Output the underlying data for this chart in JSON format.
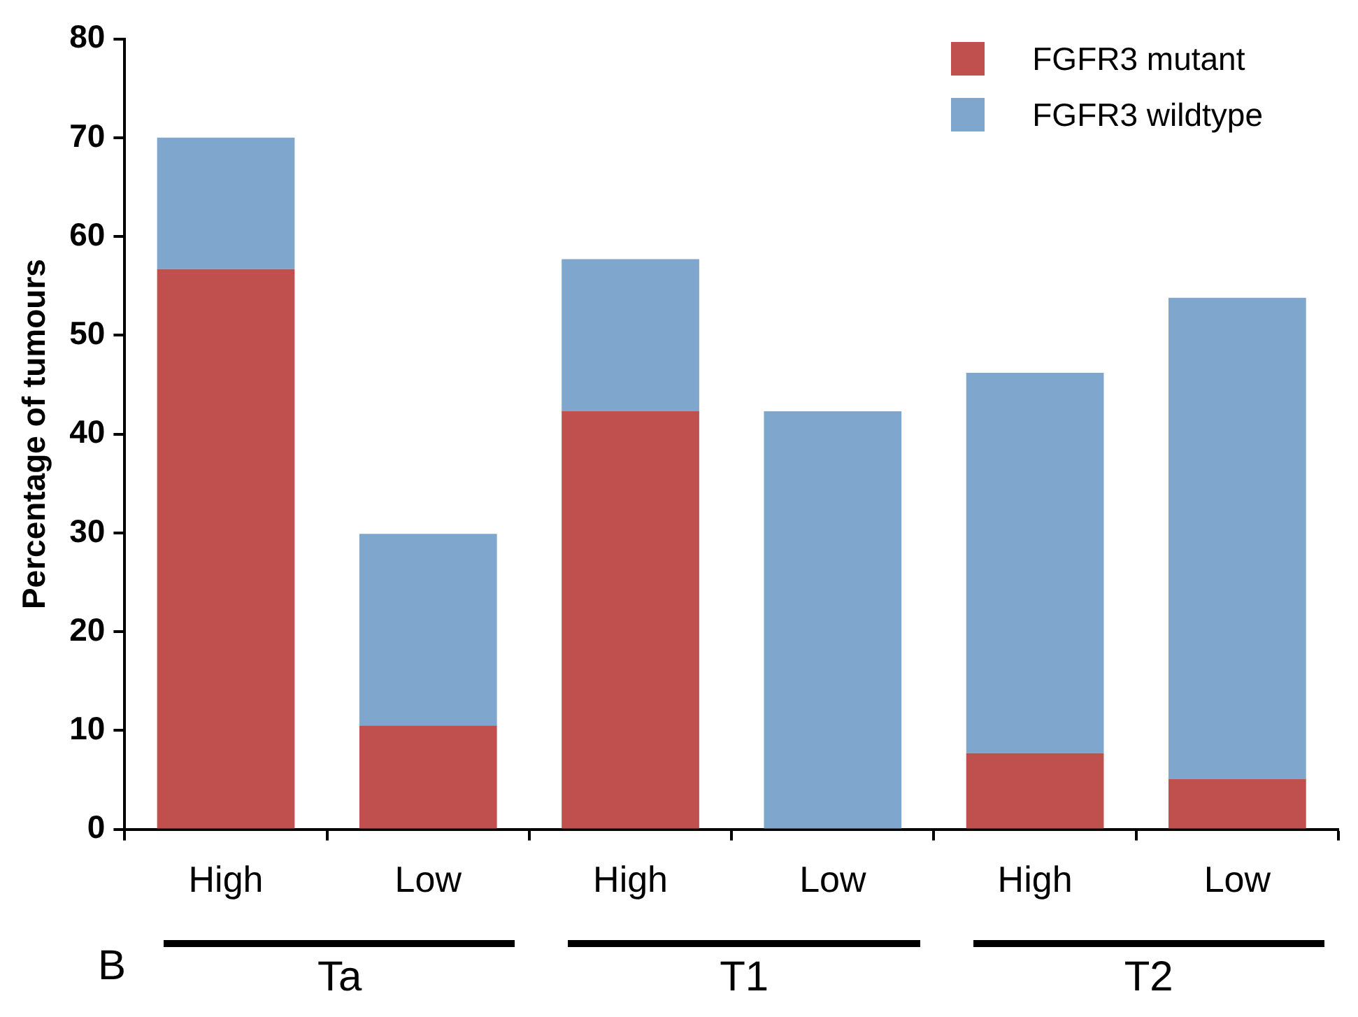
{
  "chart_data": {
    "type": "bar",
    "stacked": true,
    "ylabel": "Percentage of tumours",
    "categories": [
      "High",
      "Low",
      "High",
      "Low",
      "High",
      "Low"
    ],
    "series": [
      {
        "name": "FGFR3 mutant",
        "color": "#c0504d",
        "values": [
          56.7,
          10.5,
          42.3,
          0,
          7.7,
          5.1
        ]
      },
      {
        "name": "FGFR3 wildtype",
        "color": "#7fa7cd",
        "values": [
          13.3,
          19.4,
          15.4,
          42.3,
          38.5,
          48.7
        ]
      }
    ],
    "ylim": [
      0,
      80
    ],
    "yticks": [
      0,
      10,
      20,
      30,
      40,
      50,
      60,
      70,
      80
    ],
    "grid": false,
    "legend": "top right",
    "annotations": [
      "Ta",
      "T1",
      "T2",
      "B"
    ]
  }
}
